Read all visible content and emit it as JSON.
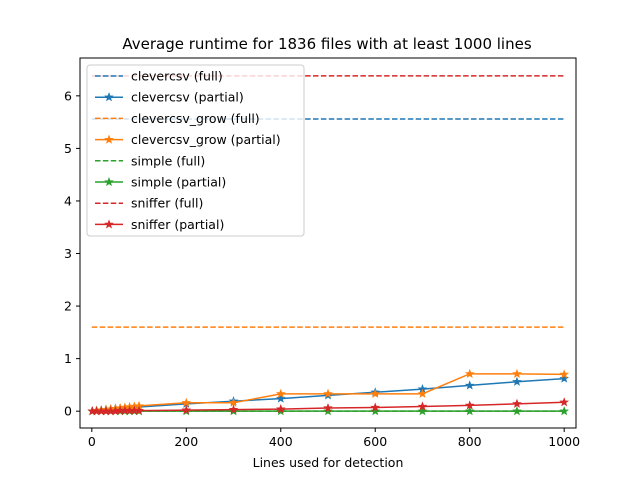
{
  "chart_data": {
    "type": "line",
    "title": "Average runtime for 1836 files with at least 1000 lines",
    "xlabel": "Lines used for detection",
    "ylabel": "",
    "xlim": [
      -25,
      1025
    ],
    "ylim": [
      -0.32,
      6.72
    ],
    "xticks": [
      0,
      200,
      400,
      600,
      800,
      1000
    ],
    "yticks": [
      0,
      1,
      2,
      3,
      4,
      5,
      6
    ],
    "grid": false,
    "legend_position": "upper-left",
    "partial_x": [
      1,
      10,
      20,
      30,
      40,
      50,
      60,
      70,
      80,
      90,
      100,
      200,
      300,
      400,
      500,
      600,
      700,
      800,
      900,
      1000
    ],
    "series": [
      {
        "name": "clevercsv (full)",
        "color": "#1f77b4",
        "style": "dashed",
        "x": [
          0,
          1000
        ],
        "values": [
          5.56,
          5.56
        ]
      },
      {
        "name": "clevercsv (partial)",
        "color": "#1f77b4",
        "style": "solid",
        "marker": "star",
        "values": [
          0.0,
          0.01,
          0.02,
          0.03,
          0.04,
          0.05,
          0.05,
          0.06,
          0.06,
          0.07,
          0.08,
          0.14,
          0.19,
          0.24,
          0.3,
          0.36,
          0.42,
          0.49,
          0.56,
          0.62
        ]
      },
      {
        "name": "clevercsv_grow (full)",
        "color": "#ff7f0e",
        "style": "dashed",
        "x": [
          0,
          1000
        ],
        "values": [
          1.6,
          1.6
        ]
      },
      {
        "name": "clevercsv_grow (partial)",
        "color": "#ff7f0e",
        "style": "solid",
        "marker": "star",
        "values": [
          0.0,
          0.01,
          0.02,
          0.03,
          0.04,
          0.05,
          0.06,
          0.07,
          0.08,
          0.09,
          0.1,
          0.16,
          0.16,
          0.33,
          0.33,
          0.33,
          0.33,
          0.71,
          0.71,
          0.7
        ]
      },
      {
        "name": "simple (full)",
        "color": "#2ca02c",
        "style": "dashed",
        "x": [
          0,
          1000
        ],
        "values": [
          0.0,
          0.0
        ]
      },
      {
        "name": "simple (partial)",
        "color": "#2ca02c",
        "style": "solid",
        "marker": "star",
        "values": [
          0,
          0,
          0,
          0,
          0,
          0,
          0,
          0,
          0,
          0,
          0,
          0,
          0,
          0,
          0,
          0,
          0,
          0,
          0,
          0
        ]
      },
      {
        "name": "sniffer (full)",
        "color": "#d62728",
        "style": "dashed",
        "x": [
          0,
          1000
        ],
        "values": [
          6.38,
          6.38
        ]
      },
      {
        "name": "sniffer (partial)",
        "color": "#d62728",
        "style": "solid",
        "marker": "star",
        "values": [
          0.0,
          0.0,
          0.0,
          0.0,
          0.0,
          0.0,
          0.01,
          0.01,
          0.01,
          0.01,
          0.01,
          0.02,
          0.03,
          0.04,
          0.06,
          0.07,
          0.09,
          0.11,
          0.14,
          0.17
        ]
      }
    ]
  }
}
